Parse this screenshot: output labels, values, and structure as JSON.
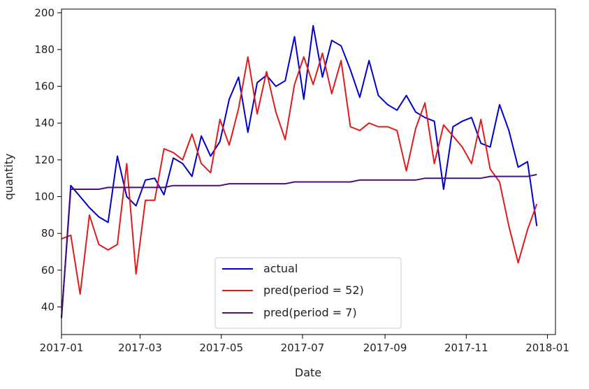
{
  "chart_data": {
    "type": "line",
    "title": "",
    "xlabel": "Date",
    "ylabel": "quantity",
    "xlim": [
      0,
      371
    ],
    "ylim": [
      25,
      202
    ],
    "x_ticks": [
      {
        "label": "2017-01",
        "day": 0
      },
      {
        "label": "2017-03",
        "day": 59
      },
      {
        "label": "2017-05",
        "day": 120
      },
      {
        "label": "2017-07",
        "day": 181
      },
      {
        "label": "2017-09",
        "day": 243
      },
      {
        "label": "2017-11",
        "day": 304
      },
      {
        "label": "2018-01",
        "day": 365
      }
    ],
    "y_ticks": [
      40,
      60,
      80,
      100,
      120,
      140,
      160,
      180,
      200
    ],
    "grid": false,
    "legend_position": "bottom-center",
    "x_unit": "days since 2017-01-01 (weekly)",
    "x": [
      0,
      7,
      14,
      21,
      28,
      35,
      42,
      49,
      56,
      63,
      70,
      77,
      84,
      91,
      98,
      105,
      112,
      119,
      126,
      133,
      140,
      147,
      154,
      161,
      168,
      175,
      182,
      189,
      196,
      203,
      210,
      217,
      224,
      231,
      238,
      245,
      252,
      259,
      266,
      273,
      280,
      287,
      294,
      301,
      308,
      315,
      322,
      329,
      336,
      343,
      350,
      357
    ],
    "series": [
      {
        "name": "actual",
        "color": "#0000cd",
        "values": [
          34,
          106,
          100,
          94,
          89,
          86,
          122,
          100,
          95,
          109,
          110,
          101,
          121,
          118,
          111,
          133,
          122,
          130,
          153,
          165,
          135,
          162,
          166,
          160,
          163,
          187,
          153,
          193,
          165,
          185,
          182,
          169,
          154,
          174,
          155,
          150,
          147,
          155,
          146,
          143,
          141,
          104,
          138,
          141,
          143,
          129,
          127,
          150,
          136,
          116,
          119,
          84
        ]
      },
      {
        "name": "pred(period = 52)",
        "color": "#e01b1b",
        "values": [
          77,
          79,
          47,
          90,
          74,
          71,
          74,
          118,
          58,
          98,
          98,
          126,
          124,
          120,
          134,
          118,
          113,
          142,
          128,
          148,
          176,
          145,
          168,
          146,
          131,
          161,
          176,
          161,
          178,
          156,
          174,
          138,
          136,
          140,
          138,
          138,
          136,
          114,
          137,
          151,
          118,
          139,
          133,
          127,
          118,
          142,
          115,
          108,
          84,
          64,
          82,
          96
        ]
      },
      {
        "name": "pred(period = 7)",
        "color": "#4b0f7a",
        "values": [
          34,
          104,
          104,
          104,
          104,
          105,
          105,
          105,
          105,
          105,
          105,
          105,
          106,
          106,
          106,
          106,
          106,
          106,
          107,
          107,
          107,
          107,
          107,
          107,
          107,
          108,
          108,
          108,
          108,
          108,
          108,
          108,
          109,
          109,
          109,
          109,
          109,
          109,
          109,
          110,
          110,
          110,
          110,
          110,
          110,
          110,
          111,
          111,
          111,
          111,
          111,
          112
        ]
      }
    ]
  }
}
